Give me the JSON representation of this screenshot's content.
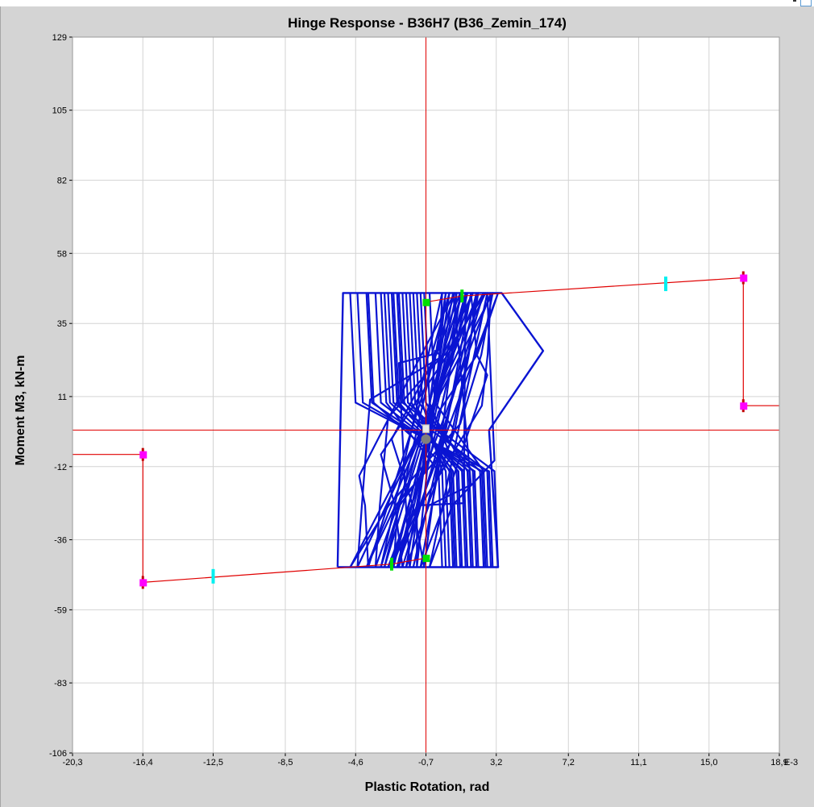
{
  "chart_data": {
    "type": "line",
    "title": "Hinge Response - B36H7 (B36_Zemin_174)",
    "xlabel": "Plastic Rotation, rad",
    "ylabel": "Moment M3, kN-m",
    "x_unit_label": "E-3",
    "xlim": [
      -20.3,
      18.9
    ],
    "ylim": [
      -106,
      129
    ],
    "x_ticks": [
      "-20,3",
      "-16,4",
      "-12,5",
      "-8,5",
      "-4,6",
      "-0,7",
      "3,2",
      "7,2",
      "11,1",
      "15,0",
      "18,9"
    ],
    "x_tick_values": [
      -20.3,
      -16.4,
      -12.5,
      -8.5,
      -4.6,
      -0.7,
      3.2,
      7.2,
      11.1,
      15.0,
      18.9
    ],
    "y_ticks": [
      "129",
      "105",
      "82",
      "58",
      "35",
      "11",
      "-12",
      "-36",
      "-59",
      "-83",
      "-106"
    ],
    "y_tick_values": [
      129,
      105,
      82,
      58,
      35,
      11,
      -12,
      -36,
      -59,
      -83,
      -106
    ],
    "grid": true,
    "colors": {
      "backbone": "#e00000",
      "hysteresis": "#0a14d2",
      "ls_marker": "#00f0f0",
      "yield_marker": "#00e000",
      "ultimate_marker": "#ff00ff",
      "point_marker": "#7f7f7f"
    },
    "axes_lines": {
      "x_at": -0.7,
      "y_at": 0
    },
    "series": [
      {
        "role": "backbone-positive",
        "x": [
          -0.7,
          -0.7,
          1.3,
          16.9,
          16.9,
          18.9
        ],
        "y": [
          0,
          42,
          44,
          50,
          8,
          8
        ]
      },
      {
        "role": "backbone-negative",
        "x": [
          -0.7,
          -0.7,
          -2.6,
          -16.4,
          -16.4,
          -20.3
        ],
        "y": [
          0,
          -42,
          -44,
          -50,
          -8,
          -8
        ]
      },
      {
        "role": "hysteresis-envelope",
        "x": [
          -5.6,
          -5.3,
          3.5,
          5.8,
          2.8,
          3.3,
          -5.6
        ],
        "y": [
          -45,
          45,
          45,
          26,
          0,
          -45,
          -45
        ]
      },
      {
        "role": "hysteresis-loops",
        "loops": [
          {
            "xa": -4.9,
            "xb": 3.0,
            "xm": 1.2,
            "ym": 2
          },
          {
            "xa": -4.5,
            "xb": 2.6,
            "xm": -3.8,
            "ym": 10
          },
          {
            "xa": -4.0,
            "xb": 2.2,
            "xm": 0.6,
            "ym": -5
          },
          {
            "xa": -3.5,
            "xb": 1.9,
            "xm": -2.8,
            "ym": 4
          },
          {
            "xa": -3.0,
            "xb": 1.6,
            "xm": -0.6,
            "ym": -12
          },
          {
            "xa": -2.8,
            "xb": 2.9,
            "xm": 2.4,
            "ym": 8
          },
          {
            "xa": -2.5,
            "xb": 1.3,
            "xm": -1.8,
            "ym": -20
          },
          {
            "xa": -2.2,
            "xb": 1.0,
            "xm": 0.2,
            "ym": 15
          },
          {
            "xa": -2.0,
            "xb": 2.5,
            "xm": -3.2,
            "ym": -8
          },
          {
            "xa": -1.8,
            "xb": 0.8,
            "xm": 1.8,
            "ym": -18
          },
          {
            "xa": -1.6,
            "xb": 0.6,
            "xm": -2.2,
            "ym": 22
          },
          {
            "xa": -1.4,
            "xb": 2.1,
            "xm": 0.9,
            "ym": 0
          },
          {
            "xa": -1.2,
            "xb": 0.4,
            "xm": -1.2,
            "ym": -28
          },
          {
            "xa": -1.0,
            "xb": 1.8,
            "xm": 2.7,
            "ym": 18
          },
          {
            "xa": -3.2,
            "xb": 0.2,
            "xm": -0.2,
            "ym": 26
          },
          {
            "xa": -2.6,
            "xb": 1.5,
            "xm": 1.4,
            "ym": -24
          },
          {
            "xa": -0.8,
            "xb": 1.2,
            "xm": -2.6,
            "ym": -3
          },
          {
            "xa": -3.9,
            "xb": 0.9,
            "xm": -4.4,
            "ym": -15
          },
          {
            "xa": -0.5,
            "xb": 2.7,
            "xm": 3.1,
            "ym": -10
          },
          {
            "xa": -2.3,
            "xb": 3.3,
            "xm": 0.0,
            "ym": 6
          }
        ]
      }
    ],
    "markers": [
      {
        "kind": "ls_marker",
        "x": 12.6,
        "y": 48
      },
      {
        "kind": "ls_marker",
        "x": -12.5,
        "y": -48
      },
      {
        "kind": "yield_marker",
        "x": 1.3,
        "y": 44
      },
      {
        "kind": "yield_marker",
        "x": -2.6,
        "y": -44
      },
      {
        "kind": "yield_marker_point",
        "x": -0.7,
        "y": 42
      },
      {
        "kind": "yield_marker_point",
        "x": -0.7,
        "y": -42
      },
      {
        "kind": "ultimate_marker",
        "x": 16.9,
        "y": 50
      },
      {
        "kind": "ultimate_marker",
        "x": 16.9,
        "y": 8
      },
      {
        "kind": "ultimate_marker",
        "x": -16.4,
        "y": -50
      },
      {
        "kind": "ultimate_marker",
        "x": -16.4,
        "y": -8
      },
      {
        "kind": "point_marker",
        "x": -0.7,
        "y": -3
      }
    ]
  }
}
